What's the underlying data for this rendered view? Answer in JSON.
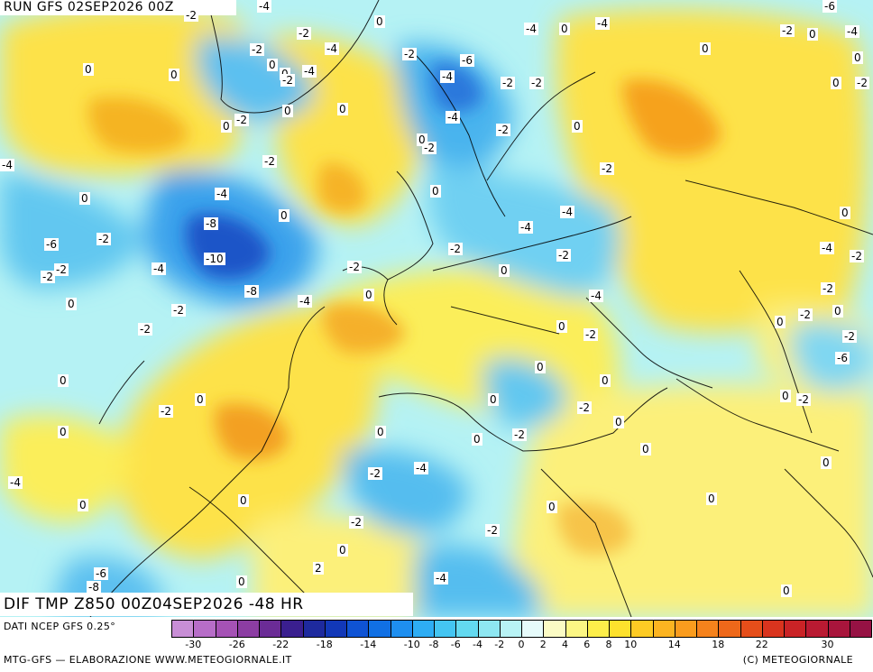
{
  "header": {
    "run_title": "RUN GFS 02SEP2026 00Z"
  },
  "map": {
    "field_title": "DIF TMP Z850 00Z04SEP2026 -48 HR",
    "bg_color": "#b5f2f4",
    "labels": [
      {
        "t": "-2"
      },
      {
        "t": "-4"
      },
      {
        "t": "0"
      },
      {
        "t": "-6"
      },
      {
        "t": "-2"
      },
      {
        "t": "0"
      },
      {
        "t": "-4"
      },
      {
        "t": "0"
      },
      {
        "t": "-4"
      },
      {
        "t": "0"
      },
      {
        "t": "-2"
      },
      {
        "t": "-4"
      },
      {
        "t": "-2"
      },
      {
        "t": "0"
      },
      {
        "t": "-4"
      },
      {
        "t": "0"
      },
      {
        "t": "0"
      },
      {
        "t": "-2"
      },
      {
        "t": "-6"
      },
      {
        "t": "0"
      },
      {
        "t": "0"
      },
      {
        "t": "-2"
      },
      {
        "t": "0"
      },
      {
        "t": "-4"
      },
      {
        "t": "-4"
      },
      {
        "t": "-2"
      },
      {
        "t": "-2"
      },
      {
        "t": "0"
      },
      {
        "t": "0"
      },
      {
        "t": "-2"
      },
      {
        "t": "0"
      },
      {
        "t": "-4"
      },
      {
        "t": "0"
      },
      {
        "t": "-2"
      },
      {
        "t": "-2"
      },
      {
        "t": "-4"
      },
      {
        "t": "-2"
      },
      {
        "t": "-2"
      },
      {
        "t": "0"
      },
      {
        "t": "0"
      },
      {
        "t": "-2"
      },
      {
        "t": "-4"
      },
      {
        "t": "0"
      },
      {
        "t": "-8"
      },
      {
        "t": "-4"
      },
      {
        "t": "0"
      },
      {
        "t": "-6"
      },
      {
        "t": "-2"
      },
      {
        "t": "-10"
      },
      {
        "t": "-2"
      },
      {
        "t": "-4"
      },
      {
        "t": "-2"
      },
      {
        "t": "-4"
      },
      {
        "t": "-2"
      },
      {
        "t": "0"
      },
      {
        "t": "-2"
      },
      {
        "t": "-8"
      },
      {
        "t": "-4"
      },
      {
        "t": "0"
      },
      {
        "t": "0"
      },
      {
        "t": "-4"
      },
      {
        "t": "-2"
      },
      {
        "t": "-2"
      },
      {
        "t": "0"
      },
      {
        "t": "-2"
      },
      {
        "t": "-2"
      },
      {
        "t": "-4"
      },
      {
        "t": "-2"
      },
      {
        "t": "-6"
      },
      {
        "t": "0"
      },
      {
        "t": "0"
      },
      {
        "t": "0"
      },
      {
        "t": "0"
      },
      {
        "t": "-2"
      },
      {
        "t": "-2"
      },
      {
        "t": "-2"
      },
      {
        "t": "0"
      },
      {
        "t": "-2"
      },
      {
        "t": "0"
      },
      {
        "t": "0"
      },
      {
        "t": "-2"
      },
      {
        "t": "0"
      },
      {
        "t": "0"
      },
      {
        "t": "0"
      },
      {
        "t": "-4"
      },
      {
        "t": "-2"
      },
      {
        "t": "-4"
      },
      {
        "t": "0"
      },
      {
        "t": "0"
      },
      {
        "t": "0"
      },
      {
        "t": "0"
      },
      {
        "t": "-2"
      },
      {
        "t": "0"
      },
      {
        "t": "0"
      },
      {
        "t": "-2"
      },
      {
        "t": "0"
      },
      {
        "t": "-2"
      },
      {
        "t": "0"
      },
      {
        "t": "0"
      },
      {
        "t": "2"
      },
      {
        "t": "0"
      },
      {
        "t": "-4"
      },
      {
        "t": "-6"
      },
      {
        "t": "-8"
      },
      {
        "t": "-2"
      },
      {
        "t": "0"
      },
      {
        "t": "0"
      }
    ]
  },
  "legend": {
    "source": "DATI NCEP GFS 0.25°",
    "credit_left": "MTG-GFS — ELABORAZIONE WWW.METEOGIORNALE.IT",
    "credit_right": "(C) METEOGIORNALE",
    "colors": [
      "#c88ed6",
      "#b76dc8",
      "#a552b5",
      "#8c3da3",
      "#6b2c96",
      "#3a1f8f",
      "#1e2a9e",
      "#1238b8",
      "#0f53d4",
      "#1170e4",
      "#1e8ff0",
      "#2eadf4",
      "#44c5f2",
      "#63d9f0",
      "#8ee7f2",
      "#b8f3f5",
      "#e6fbfb",
      "#fbfbc4",
      "#fcf684",
      "#fdee4a",
      "#fde12d",
      "#fdcb24",
      "#fcb421",
      "#fa9c1e",
      "#f5821c",
      "#ee681a",
      "#e54e1a",
      "#d9341e",
      "#c92326",
      "#b91a32",
      "#a8153c",
      "#961244"
    ],
    "ticks": [
      "-30",
      "-26",
      "-22",
      "-18",
      "-14",
      "-10",
      "-8",
      "-6",
      "-4",
      "-2",
      "0",
      "2",
      "4",
      "6",
      "8",
      "10",
      "14",
      "18",
      "22",
      "30"
    ]
  }
}
